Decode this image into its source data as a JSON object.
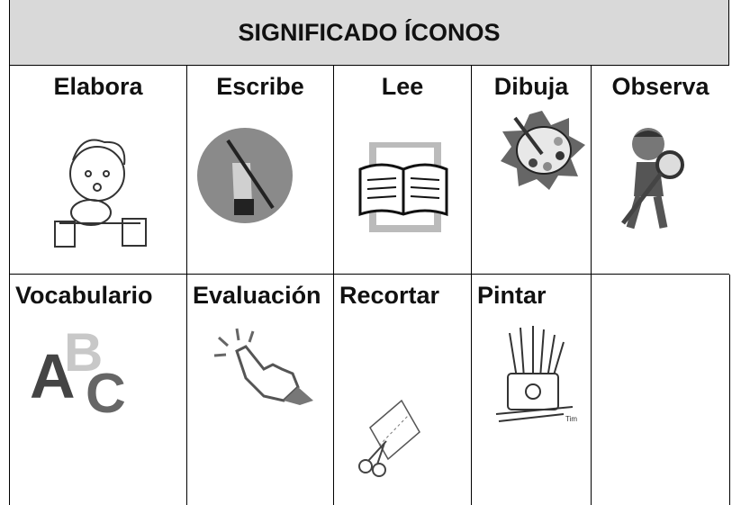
{
  "header": {
    "title": "SIGNIFICADO ÍCONOS"
  },
  "table": {
    "rows": [
      [
        "Elabora",
        "Escribe",
        "Lee",
        "Dibuja",
        "Observa"
      ],
      [
        "Vocabulario",
        "Evaluación",
        "Recortar",
        "Pintar"
      ]
    ]
  }
}
